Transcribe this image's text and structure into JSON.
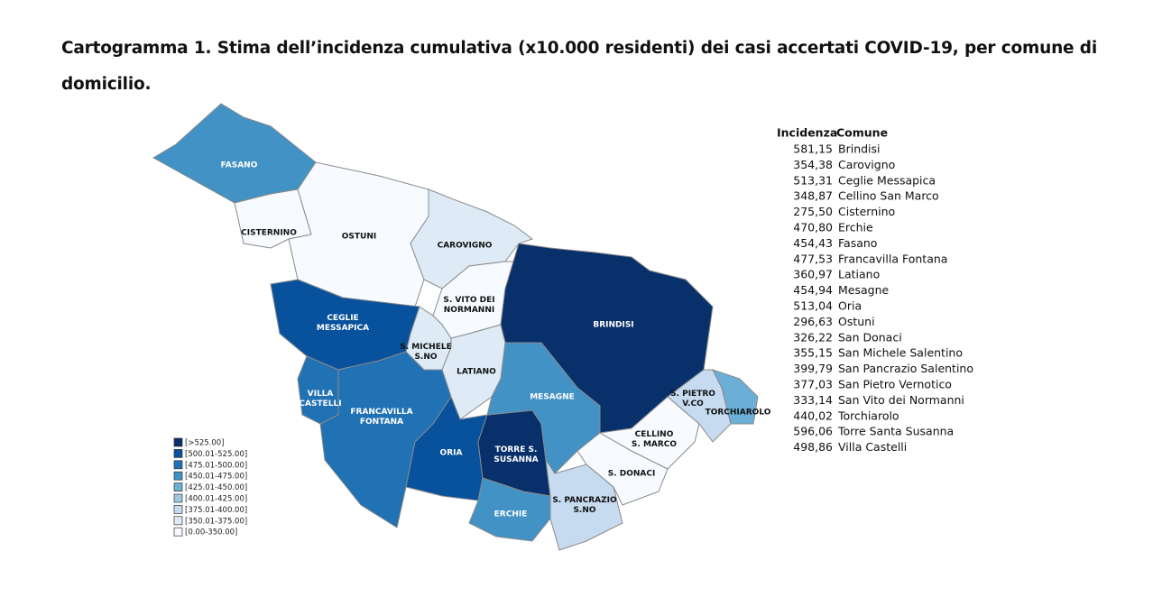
{
  "title": "Cartogramma 1. Stima dell’incidenza cumulativa (x10.000 residenti) dei casi accertati COVID-19, per comune di domicilio.",
  "legend": [
    {
      "label": "[>525.00]",
      "color": "#08306b"
    },
    {
      "label": "[500.01-525.00]",
      "color": "#08519c"
    },
    {
      "label": "[475.01-500.00]",
      "color": "#2171b5"
    },
    {
      "label": "[450.01-475.00]",
      "color": "#4292c6"
    },
    {
      "label": "[425.01-450.00]",
      "color": "#6baed6"
    },
    {
      "label": "[400.01-425.00]",
      "color": "#9ecae1"
    },
    {
      "label": "[375.01-400.00]",
      "color": "#c6dbef"
    },
    {
      "label": "[350.01-375.00]",
      "color": "#deebf7"
    },
    {
      "label": "[0.00-350.00]",
      "color": "#f7fbff"
    }
  ],
  "regions": [
    {
      "label": [
        "FASANO"
      ],
      "color": "#4292c6"
    },
    {
      "label": [
        "CISTERNINO"
      ],
      "color": "#f7fbff"
    },
    {
      "label": [
        "OSTUNI"
      ],
      "color": "#f7fbff"
    },
    {
      "label": [
        "CAROVIGNO"
      ],
      "color": "#deebf7"
    },
    {
      "label": [
        "S. VITO DEI",
        "NORMANNI"
      ],
      "color": "#f7fbff"
    },
    {
      "label": [
        "BRINDISI"
      ],
      "color": "#08306b"
    },
    {
      "label": [
        "CEGLIE",
        "MESSAPICA"
      ],
      "color": "#08519c"
    },
    {
      "label": [
        "S. MICHELE",
        "S.NO"
      ],
      "color": "#deebf7"
    },
    {
      "label": [
        "LATIANO"
      ],
      "color": "#deebf7"
    },
    {
      "label": [
        "VILLA",
        "CASTELLI"
      ],
      "color": "#2171b5"
    },
    {
      "label": [
        "FRANCAVILLA",
        "FONTANA"
      ],
      "color": "#2171b5"
    },
    {
      "label": [
        "ORIA"
      ],
      "color": "#08519c"
    },
    {
      "label": [
        "TORRE S.",
        "SUSANNA"
      ],
      "color": "#08306b"
    },
    {
      "label": [
        "MESAGNE"
      ],
      "color": "#4292c6"
    },
    {
      "label": [
        "ERCHIE"
      ],
      "color": "#4292c6"
    },
    {
      "label": [
        "S. PANCRAZIO",
        "S.NO"
      ],
      "color": "#c6dbef"
    },
    {
      "label": [
        "S. DONACI"
      ],
      "color": "#f7fbff"
    },
    {
      "label": [
        "CELLINO",
        "S. MARCO"
      ],
      "color": "#f7fbff"
    },
    {
      "label": [
        "S. PIETRO",
        "V.CO"
      ],
      "color": "#c6dbef"
    },
    {
      "label": [
        "TORCHIAROLO"
      ],
      "color": "#6baed6"
    }
  ],
  "table": {
    "header": [
      "Incidenza",
      "Comune"
    ],
    "rows": [
      [
        "581,15",
        "Brindisi"
      ],
      [
        "354,38",
        "Carovigno"
      ],
      [
        "513,31",
        "Ceglie Messapica"
      ],
      [
        "348,87",
        "Cellino San Marco"
      ],
      [
        "275,50",
        "Cisternino"
      ],
      [
        "470,80",
        "Erchie"
      ],
      [
        "454,43",
        "Fasano"
      ],
      [
        "477,53",
        "Francavilla Fontana"
      ],
      [
        "360,97",
        "Latiano"
      ],
      [
        "454,94",
        "Mesagne"
      ],
      [
        "513,04",
        "Oria"
      ],
      [
        "296,63",
        "Ostuni"
      ],
      [
        "326,22",
        "San Donaci"
      ],
      [
        "355,15",
        "San Michele Salentino"
      ],
      [
        "399,79",
        "San Pancrazio Salentino"
      ],
      [
        "377,03",
        "San Pietro Vernotico"
      ],
      [
        "333,14",
        "San Vito dei Normanni"
      ],
      [
        "440,02",
        "Torchiarolo"
      ],
      [
        "596,06",
        "Torre Santa Susanna"
      ],
      [
        "498,86",
        "Villa Castelli"
      ]
    ]
  }
}
